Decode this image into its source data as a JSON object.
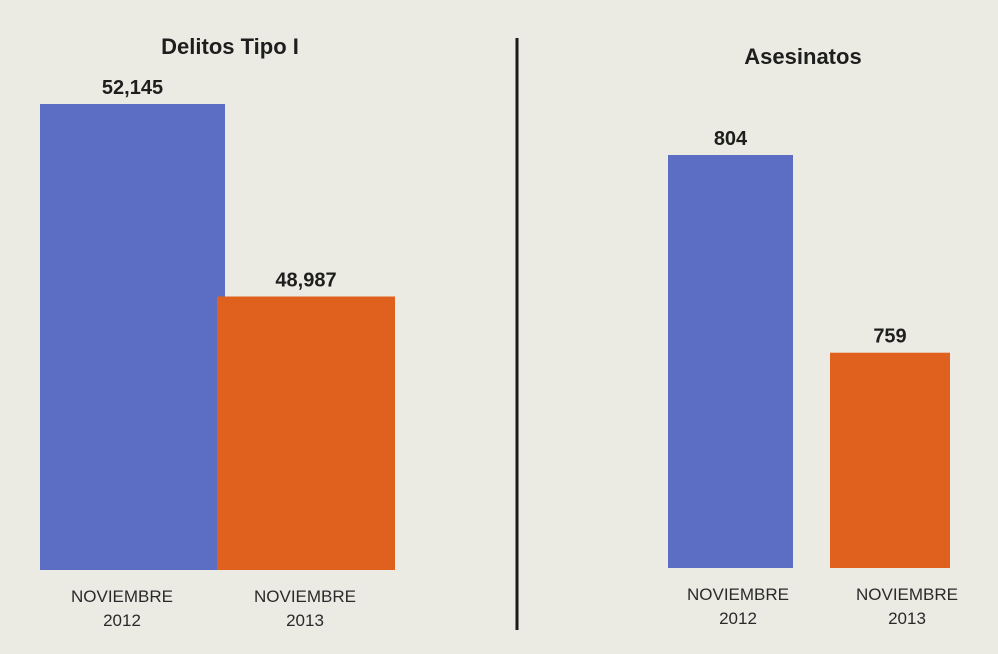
{
  "chart_data": [
    {
      "type": "bar",
      "title": "Delitos Tipo I",
      "categories": [
        [
          "NOVIEMBRE",
          "2012"
        ],
        [
          "NOVIEMBRE",
          "2013"
        ]
      ],
      "values": [
        52145,
        48987
      ],
      "value_labels": [
        "52,145",
        "48,987"
      ],
      "colors": [
        "#5b6ec4",
        "#e0601e"
      ],
      "ylim": [
        44500,
        52145
      ],
      "grid": false,
      "legend": "none"
    },
    {
      "type": "bar",
      "title": "Asesinatos",
      "categories": [
        [
          "NOVIEMBRE",
          "2012"
        ],
        [
          "NOVIEMBRE",
          "2013"
        ]
      ],
      "values": [
        804,
        759
      ],
      "value_labels": [
        "804",
        "759"
      ],
      "colors": [
        "#5b6ec4",
        "#e0601e"
      ],
      "ylim": [
        710,
        804
      ],
      "grid": false,
      "legend": "none"
    }
  ]
}
